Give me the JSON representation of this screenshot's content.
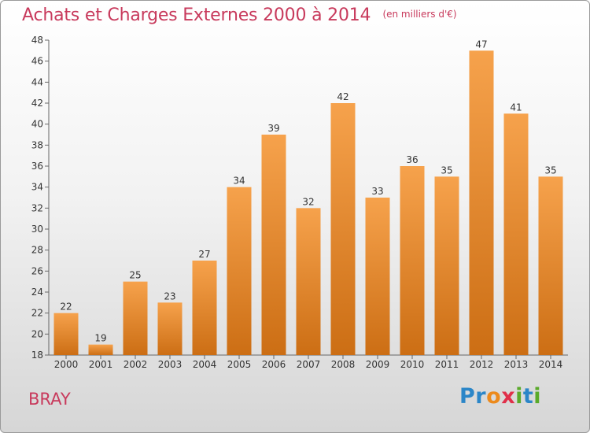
{
  "title": "Achats et Charges Externes 2000 à 2014",
  "unit_note": "(en milliers d'€)",
  "city": "BRAY",
  "logo": {
    "text": "Proxiti",
    "letters": [
      "P",
      "r",
      "o",
      "x",
      "i",
      "t",
      "i"
    ],
    "colors": [
      "#2b86c8",
      "#2b86c8",
      "#ec8a1c",
      "#e0304a",
      "#5aaa2a",
      "#2b86c8",
      "#5aaa2a"
    ]
  },
  "colors": {
    "bar": "#f0922e",
    "bar_dark": "#cc6e14",
    "title": "#c83a5c"
  },
  "chart_data": {
    "type": "bar",
    "title": "Achats et Charges Externes 2000 à 2014",
    "subtitle": "(en milliers d'€)",
    "categories": [
      "2000",
      "2001",
      "2002",
      "2003",
      "2004",
      "2005",
      "2006",
      "2007",
      "2008",
      "2009",
      "2010",
      "2011",
      "2012",
      "2013",
      "2014"
    ],
    "values": [
      22,
      19,
      25,
      23,
      27,
      34,
      39,
      32,
      42,
      33,
      36,
      35,
      47,
      41,
      35
    ],
    "ylim": [
      18,
      48
    ],
    "yticks": [
      18,
      20,
      22,
      24,
      26,
      28,
      30,
      32,
      34,
      36,
      38,
      40,
      42,
      44,
      46,
      48
    ],
    "grid": false,
    "data_labels": true
  }
}
